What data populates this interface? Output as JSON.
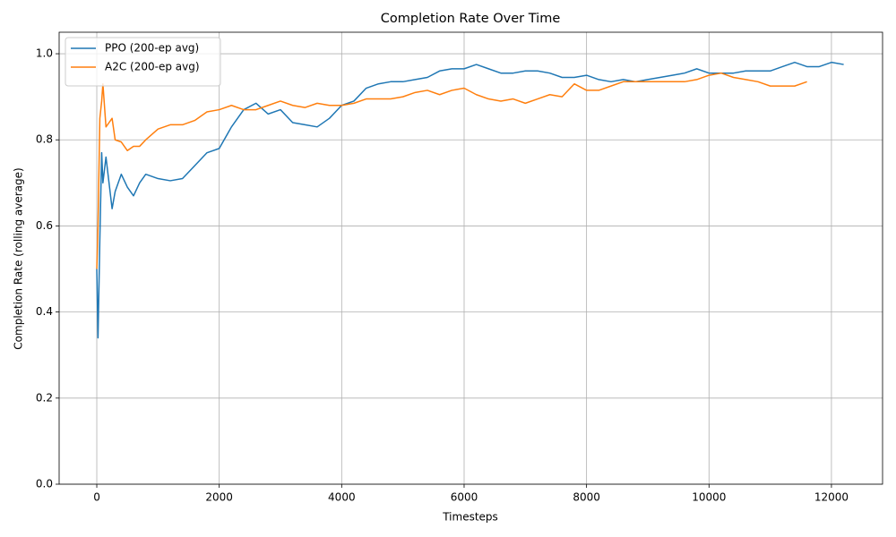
{
  "chart_data": {
    "type": "line",
    "title": "Completion Rate Over Time",
    "x_label": "Timesteps",
    "y_label": "Completion Rate (rolling average)",
    "x": [
      0,
      20,
      50,
      80,
      100,
      150,
      200,
      250,
      300,
      400,
      500,
      600,
      700,
      800,
      1000,
      1200,
      1400,
      1600,
      1800,
      2000,
      2200,
      2400,
      2600,
      2800,
      3000,
      3200,
      3400,
      3600,
      3800,
      4000,
      4200,
      4400,
      4600,
      4800,
      5000,
      5200,
      5400,
      5600,
      5800,
      6000,
      6200,
      6400,
      6600,
      6800,
      7000,
      7200,
      7400,
      7600,
      7800,
      8000,
      8200,
      8400,
      8600,
      8800,
      9000,
      9200,
      9400,
      9600,
      9800,
      10000,
      10200,
      10400,
      10600,
      10800,
      11000,
      11200,
      11400,
      11600,
      11800,
      12000,
      12200
    ],
    "series": [
      {
        "name": "PPO (200-ep avg)",
        "color": "#1f77b4",
        "values": [
          0.5,
          0.34,
          0.57,
          0.77,
          0.7,
          0.76,
          0.7,
          0.64,
          0.68,
          0.72,
          0.69,
          0.67,
          0.7,
          0.72,
          0.71,
          0.705,
          0.71,
          0.74,
          0.77,
          0.78,
          0.83,
          0.87,
          0.885,
          0.86,
          0.87,
          0.84,
          0.835,
          0.83,
          0.85,
          0.88,
          0.89,
          0.92,
          0.93,
          0.935,
          0.935,
          0.94,
          0.945,
          0.96,
          0.965,
          0.965,
          0.975,
          0.965,
          0.955,
          0.955,
          0.96,
          0.96,
          0.955,
          0.945,
          0.945,
          0.95,
          0.94,
          0.935,
          0.94,
          0.935,
          0.94,
          0.945,
          0.95,
          0.955,
          0.965,
          0.955,
          0.955,
          0.955,
          0.96,
          0.96,
          0.96,
          0.97,
          0.98,
          0.97,
          0.97,
          0.98,
          0.975
        ]
      },
      {
        "name": "A2C (200-ep avg)",
        "color": "#ff7f0e",
        "values": [
          0.5,
          0.6,
          0.85,
          0.89,
          0.93,
          0.83,
          0.84,
          0.85,
          0.8,
          0.795,
          0.775,
          0.785,
          0.785,
          0.8,
          0.825,
          0.835,
          0.835,
          0.845,
          0.865,
          0.87,
          0.88,
          0.87,
          0.87,
          0.88,
          0.89,
          0.88,
          0.875,
          0.885,
          0.88,
          0.88,
          0.885,
          0.895,
          0.895,
          0.895,
          0.9,
          0.91,
          0.915,
          0.905,
          0.915,
          0.92,
          0.905,
          0.895,
          0.89,
          0.895,
          0.885,
          0.895,
          0.905,
          0.9,
          0.93,
          0.915,
          0.915,
          0.925,
          0.935,
          0.935,
          0.935,
          0.935,
          0.935,
          0.935,
          0.94,
          0.95,
          0.955,
          0.945,
          0.94,
          0.935,
          0.925,
          0.925,
          0.925,
          0.935,
          null,
          null,
          null
        ]
      }
    ],
    "xlim": [
      -615,
      12835
    ],
    "ylim": [
      0,
      1.05
    ],
    "xticks": [
      0,
      2000,
      4000,
      6000,
      8000,
      10000,
      12000
    ],
    "yticks": [
      {
        "value": 0,
        "label": "0.0"
      },
      0.2,
      0.4,
      0.6,
      0.8,
      {
        "value": 1,
        "label": "1.0"
      }
    ],
    "grid": true,
    "legend": "upper left"
  }
}
